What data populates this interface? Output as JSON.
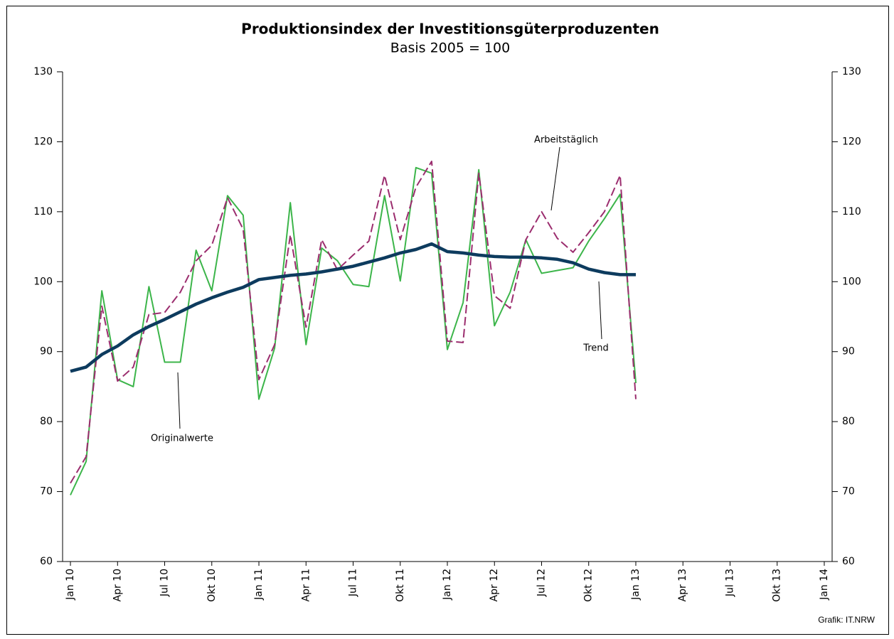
{
  "chart_data": {
    "type": "line",
    "title": "Produktionsindex der Investitionsgüterproduzenten",
    "subtitle": "Basis 2005 = 100",
    "source": "Grafik: IT.NRW",
    "categories": [
      "Jan 10",
      null,
      null,
      "Apr 10",
      null,
      null,
      "Jul 10",
      null,
      null,
      "Okt 10",
      null,
      null,
      "Jan 11",
      null,
      null,
      "Apr 11",
      null,
      null,
      "Jul 11",
      null,
      null,
      "Okt 11",
      null,
      null,
      "Jan 12",
      null,
      null,
      "Apr 12",
      null,
      null,
      "Jul 12",
      null,
      null,
      "Okt 12",
      null,
      null,
      "Jan 13",
      null,
      null,
      "Apr 13",
      null,
      null,
      "Jul 13",
      null,
      null,
      "Okt 13",
      null,
      null,
      "Jan 14"
    ],
    "series": [
      {
        "name": "Originalwerte",
        "color": "#3cb54a",
        "dash": false,
        "width": 2,
        "values": [
          69.5,
          74.3,
          98.7,
          86,
          85,
          99.3,
          88.5,
          88.5,
          104.5,
          98.7,
          112.3,
          109.5,
          83.2,
          90.5,
          111.3,
          91,
          104.8,
          103,
          99.6,
          99.3,
          112.3,
          100.1,
          116.3,
          115.5,
          90.3,
          97,
          116,
          93.7,
          98.5,
          106,
          101.2,
          101.6,
          102,
          105.8,
          109,
          112.5,
          85.5,
          null,
          null,
          null,
          null,
          null,
          null,
          null,
          null,
          null,
          null,
          null,
          null
        ]
      },
      {
        "name": "Arbeitstäglich",
        "color": "#9b2d6e",
        "dash": true,
        "width": 2,
        "values": [
          71.2,
          75,
          96.5,
          85.8,
          87.8,
          95.3,
          95.6,
          98.5,
          103,
          105.2,
          112,
          107.5,
          86,
          91,
          106.7,
          93.5,
          106,
          101.7,
          103.8,
          105.8,
          115.2,
          106,
          113.5,
          117.2,
          91.5,
          91.3,
          115.5,
          98,
          96.2,
          106,
          110,
          106.2,
          104.2,
          107,
          110,
          115.2,
          83.2,
          null,
          null,
          null,
          null,
          null,
          null,
          null,
          null,
          null,
          null,
          null,
          null
        ]
      },
      {
        "name": "Trend",
        "color": "#0d3b5e",
        "dash": false,
        "width": 4.5,
        "values": [
          87.2,
          87.8,
          89.6,
          90.8,
          92.4,
          93.6,
          94.6,
          95.7,
          96.8,
          97.7,
          98.5,
          99.2,
          100.3,
          100.6,
          100.9,
          101.1,
          101.4,
          101.8,
          102.2,
          102.8,
          103.4,
          104.1,
          104.6,
          105.4,
          104.3,
          104.1,
          103.8,
          103.6,
          103.5,
          103.5,
          103.4,
          103.2,
          102.7,
          101.8,
          101.3,
          101.0,
          101.0,
          null,
          null,
          null,
          null,
          null,
          null,
          null,
          null,
          null,
          null,
          null,
          null
        ]
      }
    ],
    "ylim": [
      60,
      130
    ],
    "yticks": [
      60,
      70,
      80,
      90,
      100,
      110,
      120,
      130
    ],
    "y2lim": [
      60,
      130
    ],
    "y2ticks": [
      60,
      70,
      80,
      90,
      100,
      110,
      120,
      130
    ],
    "grid": false
  }
}
